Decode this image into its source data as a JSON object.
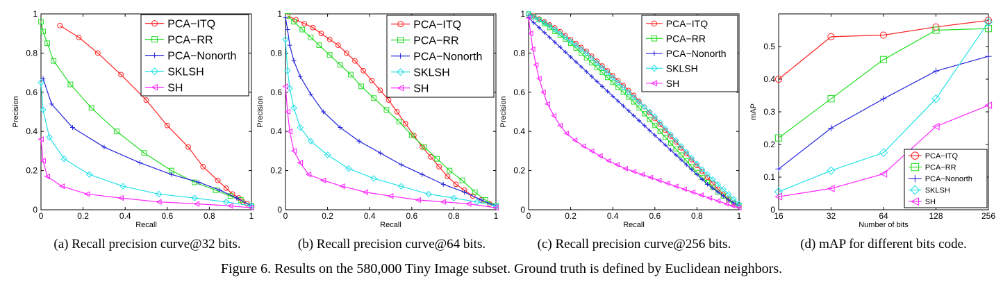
{
  "figure_caption": "Figure 6. Results on the 580,000 Tiny Image subset. Ground truth is defined by Euclidean neighbors.",
  "series_styles": [
    {
      "name": "PCA−ITQ",
      "color": "#ff2020",
      "marker": "circle"
    },
    {
      "name": "PCA−RR",
      "color": "#22dd22",
      "marker": "square"
    },
    {
      "name": "PCA−Nonorth",
      "color": "#2222dd",
      "marker": "plus"
    },
    {
      "name": "SKLSH",
      "color": "#22e0e8",
      "marker": "diamond"
    },
    {
      "name": "SH",
      "color": "#ff22ff",
      "marker": "triangle-left"
    }
  ],
  "chart_data": [
    {
      "type": "line",
      "caption": "(a)  Recall precision curve@32 bits.",
      "xlabel": "Recall",
      "ylabel": "Precision",
      "xlim": [
        0,
        1
      ],
      "ylim": [
        0,
        1
      ],
      "xticks": [
        "0",
        "0.2",
        "0.4",
        "0.6",
        "0.8",
        "1"
      ],
      "yticks": [
        "0",
        "0.2",
        "0.4",
        "0.6",
        "0.8",
        "1"
      ],
      "xtick_values": [
        0,
        0.2,
        0.4,
        0.6,
        0.8,
        1
      ],
      "ytick_values": [
        0,
        0.2,
        0.4,
        0.6,
        0.8,
        1
      ],
      "grid": false,
      "legend": "top-right",
      "series": [
        {
          "name": "PCA−ITQ",
          "x": [
            0.09,
            0.18,
            0.27,
            0.38,
            0.5,
            0.6,
            0.7,
            0.77,
            0.84,
            0.88,
            0.91,
            0.94,
            0.96,
            0.98,
            1.0
          ],
          "y": [
            0.94,
            0.88,
            0.8,
            0.69,
            0.56,
            0.43,
            0.32,
            0.22,
            0.15,
            0.11,
            0.08,
            0.06,
            0.04,
            0.03,
            0.02
          ]
        },
        {
          "name": "PCA−RR",
          "x": [
            0.0,
            0.01,
            0.03,
            0.06,
            0.14,
            0.24,
            0.36,
            0.49,
            0.62,
            0.73,
            0.83,
            0.9,
            0.95,
            1.0
          ],
          "y": [
            0.96,
            0.91,
            0.85,
            0.76,
            0.64,
            0.52,
            0.4,
            0.29,
            0.2,
            0.14,
            0.1,
            0.07,
            0.05,
            0.02
          ]
        },
        {
          "name": "PCA−Nonorth",
          "x": [
            0.01,
            0.05,
            0.15,
            0.3,
            0.47,
            0.62,
            0.75,
            0.85,
            0.93,
            1.0
          ],
          "y": [
            0.67,
            0.54,
            0.42,
            0.32,
            0.24,
            0.18,
            0.14,
            0.1,
            0.06,
            0.02
          ]
        },
        {
          "name": "SKLSH",
          "x": [
            0.0,
            0.01,
            0.04,
            0.11,
            0.23,
            0.39,
            0.56,
            0.73,
            0.88,
            1.0
          ],
          "y": [
            0.65,
            0.51,
            0.37,
            0.26,
            0.18,
            0.12,
            0.08,
            0.06,
            0.04,
            0.02
          ]
        },
        {
          "name": "SH",
          "x": [
            0.0,
            0.01,
            0.03,
            0.1,
            0.22,
            0.38,
            0.56,
            0.74,
            0.9,
            1.0
          ],
          "y": [
            0.36,
            0.25,
            0.17,
            0.12,
            0.08,
            0.06,
            0.04,
            0.03,
            0.02,
            0.01
          ]
        }
      ]
    },
    {
      "type": "line",
      "caption": "(b)  Recall precision curve@64 bits.",
      "xlabel": "Recall",
      "ylabel": "Precision",
      "xlim": [
        0,
        1
      ],
      "ylim": [
        0,
        1
      ],
      "xticks": [
        "0",
        "0.2",
        "0.4",
        "0.6",
        "0.8",
        "1"
      ],
      "yticks": [
        "0",
        "0.2",
        "0.4",
        "0.6",
        "0.8",
        "1"
      ],
      "xtick_values": [
        0,
        0.2,
        0.4,
        0.6,
        0.8,
        1
      ],
      "ytick_values": [
        0,
        0.2,
        0.4,
        0.6,
        0.8,
        1
      ],
      "grid": false,
      "legend": "top-right",
      "series": [
        {
          "name": "PCA−ITQ",
          "x": [
            0.01,
            0.05,
            0.09,
            0.13,
            0.17,
            0.21,
            0.25,
            0.29,
            0.33,
            0.37,
            0.41,
            0.45,
            0.49,
            0.53,
            0.57,
            0.61,
            0.65,
            0.69,
            0.73,
            0.77,
            0.81,
            0.85,
            0.89,
            0.93,
            0.97,
            1.0
          ],
          "y": [
            0.99,
            0.97,
            0.95,
            0.93,
            0.9,
            0.87,
            0.84,
            0.8,
            0.76,
            0.71,
            0.66,
            0.61,
            0.56,
            0.5,
            0.44,
            0.38,
            0.32,
            0.27,
            0.22,
            0.17,
            0.13,
            0.1,
            0.07,
            0.05,
            0.03,
            0.02
          ]
        },
        {
          "name": "PCA−RR",
          "x": [
            0.01,
            0.04,
            0.08,
            0.12,
            0.16,
            0.21,
            0.26,
            0.31,
            0.36,
            0.42,
            0.48,
            0.54,
            0.6,
            0.66,
            0.72,
            0.78,
            0.84,
            0.9,
            0.95,
            1.0
          ],
          "y": [
            0.99,
            0.96,
            0.92,
            0.88,
            0.84,
            0.79,
            0.74,
            0.69,
            0.63,
            0.57,
            0.51,
            0.45,
            0.38,
            0.32,
            0.26,
            0.2,
            0.15,
            0.09,
            0.05,
            0.02
          ]
        },
        {
          "name": "PCA−Nonorth",
          "x": [
            0.0,
            0.01,
            0.02,
            0.04,
            0.07,
            0.12,
            0.18,
            0.26,
            0.35,
            0.45,
            0.55,
            0.65,
            0.75,
            0.85,
            0.93,
            1.0
          ],
          "y": [
            0.98,
            0.92,
            0.84,
            0.76,
            0.68,
            0.59,
            0.5,
            0.42,
            0.35,
            0.29,
            0.23,
            0.18,
            0.13,
            0.09,
            0.05,
            0.02
          ]
        },
        {
          "name": "SKLSH",
          "x": [
            0.0,
            0.01,
            0.02,
            0.04,
            0.07,
            0.12,
            0.2,
            0.3,
            0.42,
            0.55,
            0.68,
            0.8,
            0.91,
            1.0
          ],
          "y": [
            0.87,
            0.71,
            0.62,
            0.52,
            0.42,
            0.35,
            0.28,
            0.21,
            0.16,
            0.12,
            0.08,
            0.06,
            0.04,
            0.02
          ]
        },
        {
          "name": "SH",
          "x": [
            0.0,
            0.01,
            0.02,
            0.04,
            0.07,
            0.11,
            0.18,
            0.27,
            0.38,
            0.5,
            0.63,
            0.75,
            0.87,
            1.0
          ],
          "y": [
            0.63,
            0.5,
            0.4,
            0.3,
            0.24,
            0.18,
            0.15,
            0.12,
            0.09,
            0.07,
            0.05,
            0.04,
            0.03,
            0.01
          ]
        }
      ]
    },
    {
      "type": "line",
      "caption": "(c)  Recall precision curve@256 bits.",
      "xlabel": "Recall",
      "ylabel": "Precision",
      "xlim": [
        0,
        1
      ],
      "ylim": [
        0,
        1
      ],
      "xticks": [
        "0",
        "0.2",
        "0.4",
        "0.6",
        "0.8",
        "1"
      ],
      "yticks": [
        "0",
        "0.2",
        "0.4",
        "0.6",
        "0.8",
        "1"
      ],
      "xtick_values": [
        0,
        0.2,
        0.4,
        0.6,
        0.8,
        1
      ],
      "ytick_values": [
        0,
        0.2,
        0.4,
        0.6,
        0.8,
        1
      ],
      "grid": false,
      "legend": "top-right",
      "series": [
        {
          "name": "PCA−ITQ",
          "x": [
            0.0,
            0.025,
            0.05,
            0.075,
            0.1,
            0.125,
            0.15,
            0.175,
            0.2,
            0.225,
            0.25,
            0.275,
            0.3,
            0.325,
            0.35,
            0.375,
            0.4,
            0.425,
            0.45,
            0.475,
            0.5,
            0.525,
            0.55,
            0.575,
            0.6,
            0.625,
            0.65,
            0.675,
            0.7,
            0.725,
            0.75,
            0.775,
            0.8,
            0.825,
            0.85,
            0.875,
            0.9,
            0.925,
            0.95,
            0.975,
            1.0
          ],
          "y": [
            1.0,
            0.99,
            0.975,
            0.96,
            0.945,
            0.93,
            0.91,
            0.89,
            0.87,
            0.85,
            0.83,
            0.81,
            0.785,
            0.76,
            0.735,
            0.71,
            0.685,
            0.66,
            0.635,
            0.61,
            0.585,
            0.555,
            0.525,
            0.495,
            0.465,
            0.435,
            0.405,
            0.375,
            0.345,
            0.315,
            0.285,
            0.255,
            0.225,
            0.195,
            0.165,
            0.135,
            0.105,
            0.08,
            0.055,
            0.035,
            0.02
          ]
        },
        {
          "name": "PCA−RR",
          "x": [
            0.0,
            0.025,
            0.05,
            0.075,
            0.1,
            0.125,
            0.15,
            0.175,
            0.2,
            0.225,
            0.25,
            0.275,
            0.3,
            0.325,
            0.35,
            0.375,
            0.4,
            0.425,
            0.45,
            0.475,
            0.5,
            0.525,
            0.55,
            0.575,
            0.6,
            0.625,
            0.65,
            0.675,
            0.7,
            0.725,
            0.75,
            0.775,
            0.8,
            0.825,
            0.85,
            0.875,
            0.9,
            0.925,
            0.95,
            0.975,
            1.0
          ],
          "y": [
            1.0,
            0.985,
            0.97,
            0.95,
            0.93,
            0.91,
            0.89,
            0.87,
            0.85,
            0.825,
            0.8,
            0.775,
            0.75,
            0.725,
            0.7,
            0.675,
            0.65,
            0.625,
            0.6,
            0.575,
            0.55,
            0.52,
            0.49,
            0.46,
            0.43,
            0.4,
            0.37,
            0.34,
            0.31,
            0.28,
            0.25,
            0.22,
            0.19,
            0.165,
            0.14,
            0.115,
            0.09,
            0.07,
            0.05,
            0.03,
            0.02
          ]
        },
        {
          "name": "PCA−Nonorth",
          "x": [
            0.0,
            0.025,
            0.05,
            0.075,
            0.1,
            0.125,
            0.15,
            0.175,
            0.2,
            0.225,
            0.25,
            0.275,
            0.3,
            0.325,
            0.35,
            0.375,
            0.4,
            0.425,
            0.45,
            0.475,
            0.5,
            0.525,
            0.55,
            0.575,
            0.6,
            0.625,
            0.65,
            0.675,
            0.7,
            0.725,
            0.75,
            0.775,
            0.8,
            0.825,
            0.85,
            0.875,
            0.9,
            0.925,
            0.95,
            0.975,
            1.0
          ],
          "y": [
            0.98,
            0.955,
            0.93,
            0.905,
            0.88,
            0.855,
            0.83,
            0.805,
            0.78,
            0.755,
            0.73,
            0.705,
            0.68,
            0.655,
            0.63,
            0.605,
            0.58,
            0.555,
            0.53,
            0.505,
            0.48,
            0.455,
            0.43,
            0.405,
            0.38,
            0.355,
            0.33,
            0.305,
            0.28,
            0.255,
            0.23,
            0.205,
            0.18,
            0.155,
            0.13,
            0.11,
            0.09,
            0.07,
            0.05,
            0.035,
            0.02
          ]
        },
        {
          "name": "SKLSH",
          "x": [
            0.0,
            0.025,
            0.05,
            0.075,
            0.1,
            0.125,
            0.15,
            0.175,
            0.2,
            0.225,
            0.25,
            0.275,
            0.3,
            0.325,
            0.35,
            0.375,
            0.4,
            0.425,
            0.45,
            0.475,
            0.5,
            0.525,
            0.55,
            0.575,
            0.6,
            0.625,
            0.65,
            0.675,
            0.7,
            0.725,
            0.75,
            0.775,
            0.8,
            0.825,
            0.85,
            0.875,
            0.9,
            0.925,
            0.95,
            0.975,
            1.0
          ],
          "y": [
            1.0,
            0.985,
            0.97,
            0.955,
            0.94,
            0.92,
            0.9,
            0.88,
            0.86,
            0.84,
            0.82,
            0.8,
            0.775,
            0.75,
            0.725,
            0.7,
            0.675,
            0.65,
            0.625,
            0.6,
            0.575,
            0.55,
            0.525,
            0.5,
            0.475,
            0.445,
            0.415,
            0.385,
            0.355,
            0.325,
            0.295,
            0.265,
            0.235,
            0.205,
            0.18,
            0.155,
            0.13,
            0.105,
            0.08,
            0.055,
            0.03
          ]
        },
        {
          "name": "SH",
          "x": [
            0.0,
            0.01,
            0.02,
            0.035,
            0.05,
            0.07,
            0.09,
            0.12,
            0.15,
            0.18,
            0.22,
            0.26,
            0.3,
            0.34,
            0.38,
            0.42,
            0.46,
            0.5,
            0.54,
            0.58,
            0.62,
            0.66,
            0.7,
            0.74,
            0.78,
            0.82,
            0.86,
            0.9,
            0.94,
            0.97,
            1.0
          ],
          "y": [
            0.98,
            0.9,
            0.82,
            0.74,
            0.67,
            0.6,
            0.54,
            0.48,
            0.43,
            0.39,
            0.355,
            0.325,
            0.3,
            0.275,
            0.25,
            0.23,
            0.21,
            0.195,
            0.18,
            0.165,
            0.15,
            0.135,
            0.12,
            0.105,
            0.09,
            0.075,
            0.06,
            0.045,
            0.03,
            0.02,
            0.01
          ]
        }
      ]
    },
    {
      "type": "line",
      "caption": "(d)  mAP for different bits code.",
      "xlabel": "Number of bits",
      "ylabel": "mAP",
      "xlim": [
        16,
        256
      ],
      "ylim": [
        0,
        0.6
      ],
      "xscale": "log2",
      "xticks": [
        "16",
        "32",
        "64",
        "128",
        "256"
      ],
      "yticks": [
        "0",
        "0.1",
        "0.2",
        "0.3",
        "0.4",
        "0.5"
      ],
      "xtick_values": [
        16,
        32,
        64,
        128,
        256
      ],
      "ytick_values": [
        0,
        0.1,
        0.2,
        0.3,
        0.4,
        0.5
      ],
      "grid": false,
      "legend": "bottom-right",
      "series": [
        {
          "name": "PCA−ITQ",
          "x": [
            16,
            32,
            64,
            128,
            256
          ],
          "y": [
            0.4,
            0.53,
            0.535,
            0.56,
            0.58
          ]
        },
        {
          "name": "PCA−RR",
          "x": [
            16,
            32,
            64,
            128,
            256
          ],
          "y": [
            0.22,
            0.34,
            0.46,
            0.55,
            0.555
          ]
        },
        {
          "name": "PCA−Nonorth",
          "x": [
            16,
            32,
            64,
            128,
            256
          ],
          "y": [
            0.125,
            0.25,
            0.34,
            0.425,
            0.47
          ]
        },
        {
          "name": "SKLSH",
          "x": [
            16,
            32,
            64,
            128,
            256
          ],
          "y": [
            0.055,
            0.12,
            0.175,
            0.34,
            0.575
          ]
        },
        {
          "name": "SH",
          "x": [
            16,
            32,
            64,
            128,
            256
          ],
          "y": [
            0.04,
            0.065,
            0.11,
            0.255,
            0.32
          ]
        }
      ]
    }
  ]
}
